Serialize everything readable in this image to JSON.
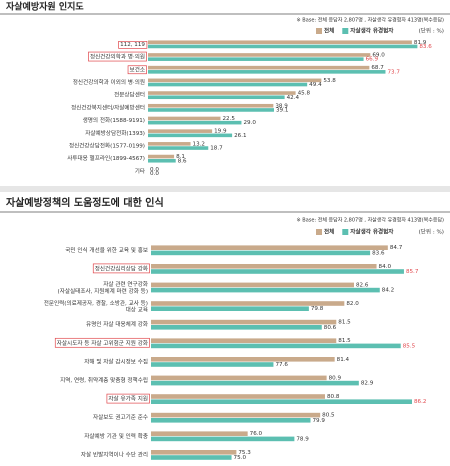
{
  "chart_data": [
    {
      "type": "bar",
      "orientation": "horizontal",
      "title": "자살예방자원 인지도",
      "note": "※ Base: 전체 응답자 2,807명 , 자살생각 유경험자 413명(복수응답)",
      "unit": "(단위 : %)",
      "categories": [
        "112, 119",
        "정신건강의학과 병·의원",
        "보건소",
        "정신건강의학과 이외의 병·의원",
        "전문상담센터",
        "정신건강복지센터/자살예방센터",
        "생명의 전화(1588-9191)",
        "자살예방상담전화(1393)",
        "정신건강상담전화(1577-0199)",
        "사투대응 헬프라인(1899-4567)",
        "기타"
      ],
      "series": [
        {
          "name": "전체",
          "color": "#c9aa8b",
          "values": [
            81.9,
            69.0,
            68.7,
            53.8,
            45.8,
            38.9,
            22.5,
            19.9,
            13.2,
            8.1,
            0.0
          ],
          "value_labels": [
            "81.9",
            "69.0",
            "68.7",
            "53.8",
            "45.8",
            "38.9",
            "22.5",
            "19.9",
            "13.2",
            "8.1",
            "0.0"
          ]
        },
        {
          "name": "자살생각 유경험자",
          "color": "#5cbfb1",
          "values": [
            83.6,
            66.9,
            73.7,
            49.4,
            42.4,
            39.1,
            29.0,
            26.1,
            18.7,
            8.6,
            0.0
          ],
          "value_labels": [
            "83.6",
            "66.9",
            "73.7",
            "49.4",
            "42.4",
            "39.1",
            "29.0",
            "26.1",
            "18.7",
            "8.6",
            "0.0"
          ]
        }
      ],
      "xlim": [
        0,
        90
      ],
      "highlight": [
        0,
        1,
        2
      ],
      "highlight_color": "#e0474c"
    },
    {
      "type": "bar",
      "orientation": "horizontal",
      "title": "자살예방정책의 도움정도에 대한 인식",
      "note": "※ Base: 전체 응답자 2,807명 , 자살생각 유경험자 413명(복수응답)",
      "unit": "(단위 : %)",
      "categories": [
        "국민 인식 개선을 위한 교육 및 홍보",
        "정신건강심리상담 강화",
        "자살 관련 연구강화\n(자살실태조사, 지원체계 마련 강화 등)",
        "전문인력(의료제공자, 경찰, 소방관, 교사 등)\n대상 교육",
        "유명인 자살 대응체계 강화",
        "자살시도자 등 자살 고위험군 지원 강화",
        "자해 및 자살 감시정보 수집",
        "지역, 연령, 취약계층 맞춤형 정책수립",
        "자살 유가족 지원",
        "자살보도 권고기준 준수",
        "자살예방 기관 및 인력 확충",
        "자살 빈발지역이나 수단 관리"
      ],
      "series": [
        {
          "name": "전체",
          "color": "#c9aa8b",
          "values": [
            84.7,
            84.0,
            82.6,
            82.0,
            81.5,
            81.5,
            81.4,
            80.9,
            80.8,
            80.5,
            76.0,
            75.3
          ],
          "value_labels": [
            "84.7",
            "84.0",
            "82.6",
            "82.0",
            "81.5",
            "81.5",
            "81.4",
            "80.9",
            "80.8",
            "80.5",
            "76.0",
            "75.3"
          ]
        },
        {
          "name": "자살생각 유경험자",
          "color": "#5cbfb1",
          "values": [
            83.6,
            85.7,
            84.2,
            79.8,
            80.6,
            85.5,
            77.6,
            82.9,
            86.2,
            79.9,
            78.9,
            75.0
          ],
          "value_labels": [
            "83.6",
            "85.7",
            "84.2",
            "79.8",
            "80.6",
            "85.5",
            "77.6",
            "82.9",
            "86.2",
            "79.9",
            "78.9",
            "75.0"
          ]
        }
      ],
      "xlim": [
        70,
        88
      ],
      "highlight": [
        1,
        5,
        8
      ],
      "highlight_color": "#e0474c"
    }
  ]
}
